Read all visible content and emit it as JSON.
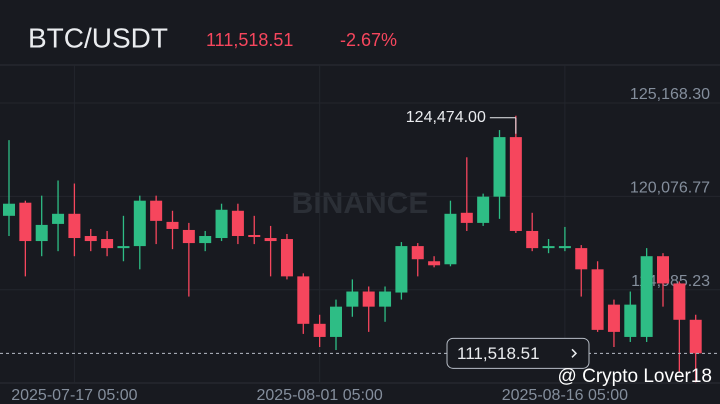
{
  "chart_data": {
    "type": "candlestick",
    "title": "BTC/USDT",
    "price_label": "111,518.51",
    "change_label": "-2.67%",
    "watermark": "BINANCE",
    "credit": "@ Crypto Lover18",
    "up_color": "#2ebd85",
    "down_color": "#f6465d",
    "grid": true,
    "categories": [
      null,
      null,
      null,
      null,
      "2025-07-17 05:00",
      null,
      null,
      null,
      null,
      null,
      null,
      null,
      null,
      null,
      null,
      null,
      null,
      null,
      null,
      "2025-08-01 05:00",
      null,
      null,
      null,
      null,
      null,
      null,
      null,
      null,
      null,
      null,
      null,
      null,
      null,
      null,
      "2025-08-16 05:00",
      null,
      null,
      null,
      null,
      null,
      null,
      null,
      null
    ],
    "open": [
      119016,
      119731,
      117640,
      118575,
      119126,
      117915,
      117750,
      117255,
      117365,
      119841,
      118685,
      118245,
      117530,
      117805,
      119291,
      117970,
      117805,
      117750,
      115714,
      113127,
      112412,
      114063,
      114888,
      114063,
      114833,
      117365,
      116539,
      116374,
      119181,
      118630,
      120061,
      123308,
      118190,
      117255,
      117255,
      117255,
      116099,
      114173,
      112412,
      112412,
      116814,
      115328,
      113347
    ],
    "high": [
      123143,
      119841,
      120116,
      120942,
      120777,
      118300,
      118190,
      119016,
      120116,
      120116,
      119291,
      118630,
      118190,
      119676,
      119676,
      119016,
      118465,
      118025,
      115879,
      113622,
      114448,
      115549,
      115163,
      115163,
      117585,
      117530,
      116814,
      119841,
      122208,
      120226,
      123693,
      124474,
      119181,
      117750,
      118410,
      117420,
      116539,
      114448,
      114888,
      117255,
      116979,
      115438,
      113622
    ],
    "low": [
      117915,
      115714,
      116814,
      117089,
      116814,
      117089,
      116814,
      116539,
      116099,
      117475,
      117199,
      114613,
      117089,
      117640,
      117475,
      117475,
      115714,
      115549,
      112577,
      111862,
      111697,
      113512,
      112687,
      113237,
      114448,
      115714,
      116209,
      116264,
      118190,
      118465,
      118851,
      118080,
      117089,
      116979,
      117089,
      114613,
      112687,
      111862,
      112137,
      112137,
      114063,
      110486,
      109936
    ],
    "close": [
      119676,
      117640,
      118520,
      119126,
      117805,
      117640,
      117255,
      117365,
      119841,
      118740,
      118300,
      117530,
      117915,
      119346,
      117915,
      117860,
      117640,
      115714,
      113127,
      112412,
      114063,
      114888,
      114063,
      114888,
      117365,
      116649,
      116319,
      119126,
      118630,
      120061,
      123308,
      118190,
      117255,
      117365,
      117365,
      116099,
      112797,
      112687,
      114173,
      116814,
      115328,
      113347,
      111518.51
    ],
    "annotations": [
      {
        "index": 31,
        "value": 124474,
        "label": "124,474.00"
      }
    ],
    "ylim": [
      109900,
      127240
    ],
    "yticks": [
      {
        "value": 125168.3,
        "label": "125,168.30"
      },
      {
        "value": 120076.77,
        "label": "120,076.77"
      },
      {
        "value": 114985.23,
        "label": "114,985.23"
      }
    ]
  }
}
